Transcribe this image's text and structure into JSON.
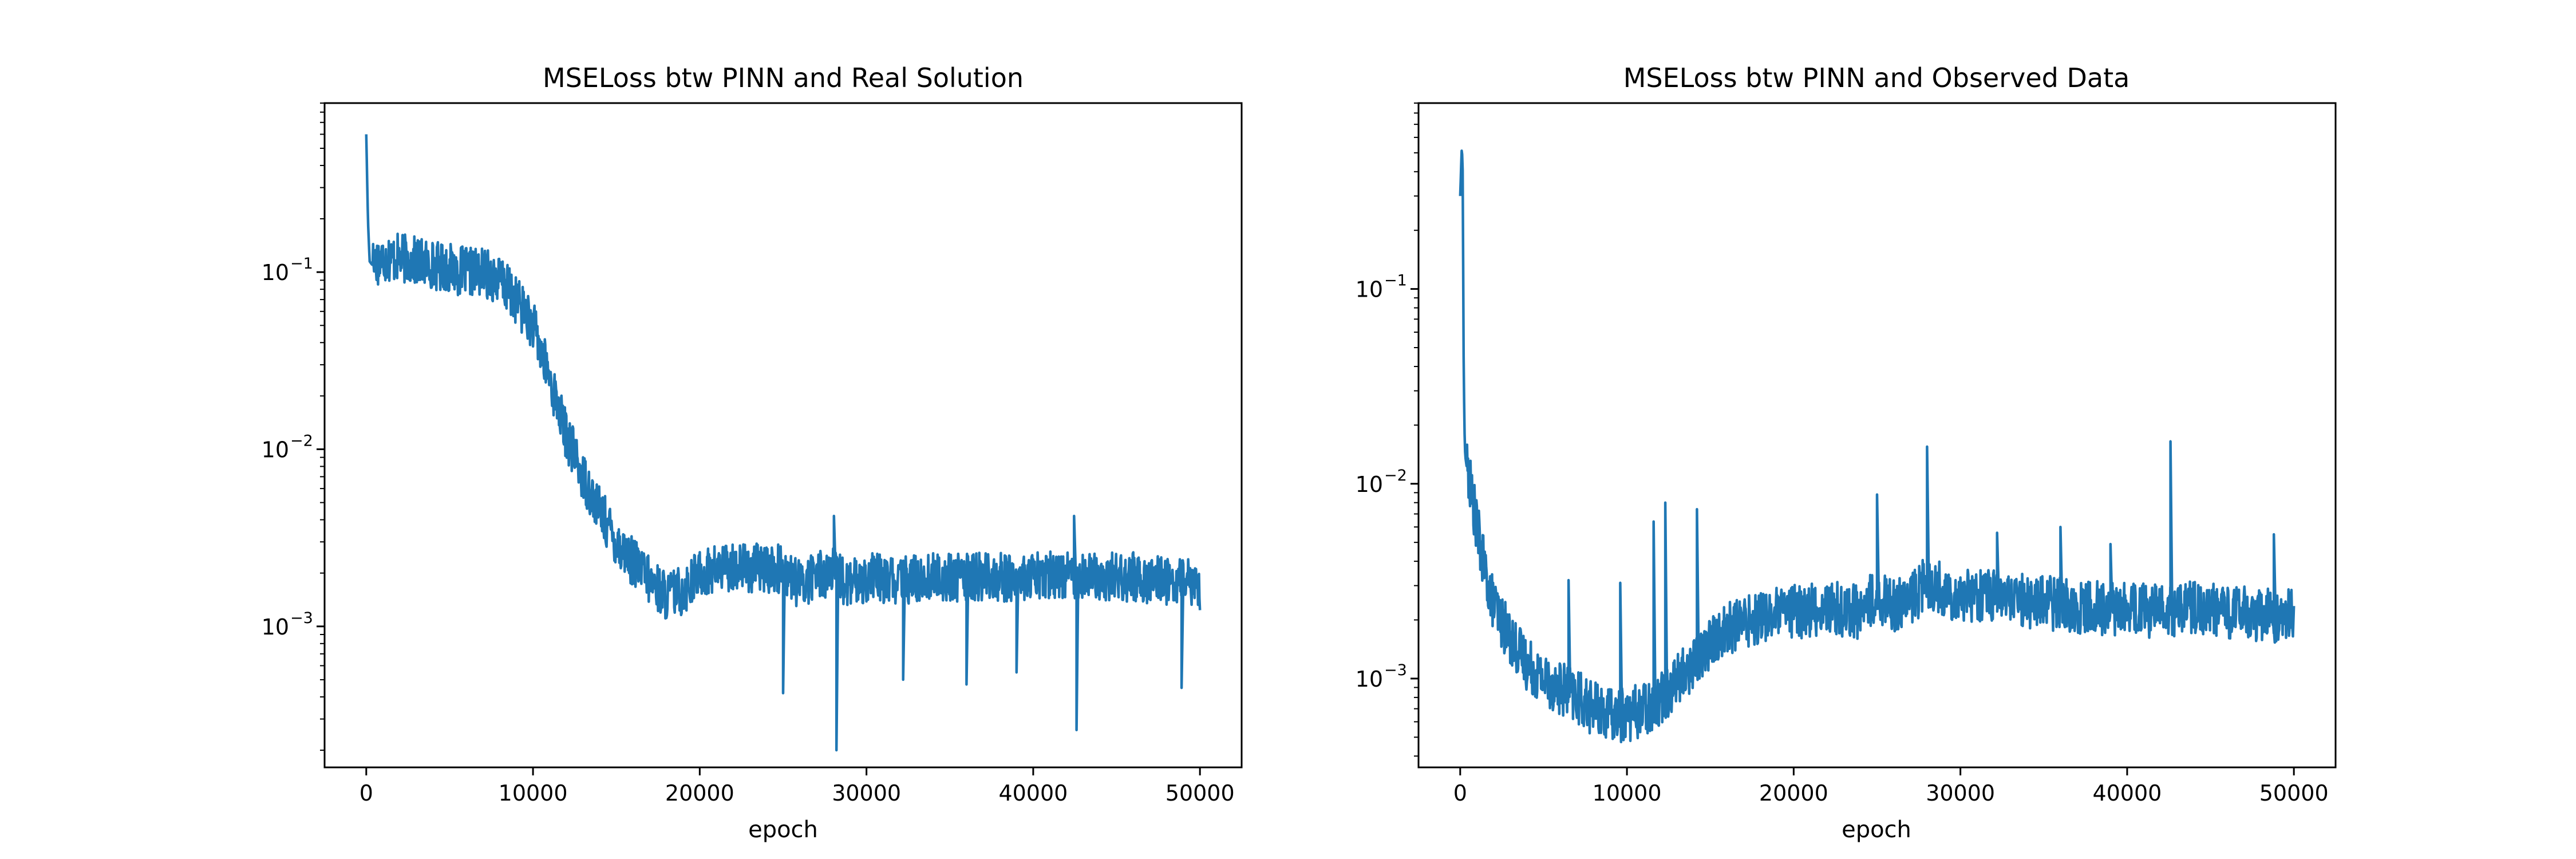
{
  "chart_data": [
    {
      "type": "line",
      "title": "MSELoss btw PINN and Real Solution",
      "xlabel": "epoch",
      "ylabel": "",
      "yscale": "log",
      "xlim": [
        -2500,
        52500
      ],
      "ylim": [
        0.00016,
        0.9
      ],
      "xticks": [
        {
          "value": 0,
          "label": "0"
        },
        {
          "value": 10000,
          "label": "10000"
        },
        {
          "value": 20000,
          "label": "20000"
        },
        {
          "value": 30000,
          "label": "30000"
        },
        {
          "value": 40000,
          "label": "40000"
        },
        {
          "value": 50000,
          "label": "50000"
        }
      ],
      "yticks": [
        {
          "value": 0.1,
          "base": "10",
          "exponent": "−1"
        },
        {
          "value": 0.01,
          "base": "10",
          "exponent": "−2"
        },
        {
          "value": 0.001,
          "base": "10",
          "exponent": "−3"
        }
      ],
      "grid": false,
      "legend": "none",
      "color": "#1f77b4",
      "noise": 0.14,
      "series": [
        {
          "x": [
            0,
            100,
            200,
            350,
            500,
            1000,
            2000,
            3000,
            4000,
            5000,
            6000,
            7000,
            8000,
            9000,
            10000,
            11000,
            12000,
            13000,
            14000,
            15000,
            16000,
            17000,
            18000,
            19000,
            20000,
            22000,
            24000,
            25000,
            26000,
            27000,
            28000,
            29000,
            30000,
            32000,
            34000,
            36000,
            38000,
            40000,
            42000,
            44000,
            46000,
            48000,
            50000
          ],
          "y": [
            0.6,
            0.2,
            0.115,
            0.11,
            0.115,
            0.12,
            0.12,
            0.115,
            0.11,
            0.105,
            0.1,
            0.1,
            0.09,
            0.07,
            0.05,
            0.025,
            0.012,
            0.007,
            0.0045,
            0.003,
            0.0023,
            0.0018,
            0.0015,
            0.0016,
            0.002,
            0.0022,
            0.0021,
            0.0021,
            0.0017,
            0.002,
            0.002,
            0.0017,
            0.0019,
            0.0018,
            0.0019,
            0.0019,
            0.0019,
            0.0019,
            0.002,
            0.0019,
            0.0019,
            0.0018,
            0.0017
          ]
        }
      ],
      "spikes": [
        {
          "x": 25000,
          "y": 0.00042
        },
        {
          "x": 28200,
          "y": 0.0002
        },
        {
          "x": 28050,
          "y": 0.0042
        },
        {
          "x": 32200,
          "y": 0.0005
        },
        {
          "x": 36000,
          "y": 0.00047
        },
        {
          "x": 39000,
          "y": 0.00055
        },
        {
          "x": 42600,
          "y": 0.00026
        },
        {
          "x": 42450,
          "y": 0.0042
        },
        {
          "x": 48900,
          "y": 0.00045
        }
      ]
    },
    {
      "type": "line",
      "title": "MSELoss btw PINN and Observed Data",
      "xlabel": "epoch",
      "ylabel": "",
      "yscale": "log",
      "xlim": [
        -2500,
        52500
      ],
      "ylim": [
        0.00035,
        0.9
      ],
      "xticks": [
        {
          "value": 0,
          "label": "0"
        },
        {
          "value": 10000,
          "label": "10000"
        },
        {
          "value": 20000,
          "label": "20000"
        },
        {
          "value": 30000,
          "label": "30000"
        },
        {
          "value": 40000,
          "label": "40000"
        },
        {
          "value": 50000,
          "label": "50000"
        }
      ],
      "yticks": [
        {
          "value": 0.1,
          "base": "10",
          "exponent": "−1"
        },
        {
          "value": 0.01,
          "base": "10",
          "exponent": "−2"
        },
        {
          "value": 0.001,
          "base": "10",
          "exponent": "−3"
        }
      ],
      "grid": false,
      "legend": "none",
      "color": "#1f77b4",
      "noise": 0.14,
      "series": [
        {
          "x": [
            0,
            100,
            150,
            200,
            250,
            300,
            400,
            600,
            1000,
            1500,
            2000,
            3000,
            4000,
            5000,
            6000,
            7000,
            8000,
            9000,
            10000,
            11000,
            12000,
            14000,
            15000,
            16000,
            18000,
            20000,
            22000,
            24000,
            25000,
            26000,
            27000,
            28000,
            29000,
            30000,
            32000,
            34000,
            36000,
            38000,
            40000,
            42000,
            44000,
            46000,
            48000,
            50000
          ],
          "y": [
            0.3,
            0.55,
            0.4,
            0.05,
            0.02,
            0.014,
            0.012,
            0.01,
            0.006,
            0.0035,
            0.0024,
            0.0016,
            0.0012,
            0.001,
            0.0009,
            0.0008,
            0.0007,
            0.00065,
            0.00065,
            0.0007,
            0.0008,
            0.0012,
            0.0015,
            0.0018,
            0.0021,
            0.0022,
            0.0023,
            0.0022,
            0.0027,
            0.0024,
            0.0025,
            0.0032,
            0.0028,
            0.0027,
            0.0027,
            0.0025,
            0.0024,
            0.0023,
            0.0023,
            0.0022,
            0.0023,
            0.0022,
            0.0021,
            0.0021
          ]
        }
      ],
      "spikes": [
        {
          "x": 6500,
          "y": 0.0032
        },
        {
          "x": 9600,
          "y": 0.0031
        },
        {
          "x": 11600,
          "y": 0.0064
        },
        {
          "x": 12300,
          "y": 0.008
        },
        {
          "x": 14200,
          "y": 0.0074
        },
        {
          "x": 25000,
          "y": 0.0088
        },
        {
          "x": 28000,
          "y": 0.0155
        },
        {
          "x": 32200,
          "y": 0.0056
        },
        {
          "x": 36000,
          "y": 0.006
        },
        {
          "x": 39000,
          "y": 0.0049
        },
        {
          "x": 42600,
          "y": 0.0165
        },
        {
          "x": 48800,
          "y": 0.0055
        }
      ]
    }
  ]
}
